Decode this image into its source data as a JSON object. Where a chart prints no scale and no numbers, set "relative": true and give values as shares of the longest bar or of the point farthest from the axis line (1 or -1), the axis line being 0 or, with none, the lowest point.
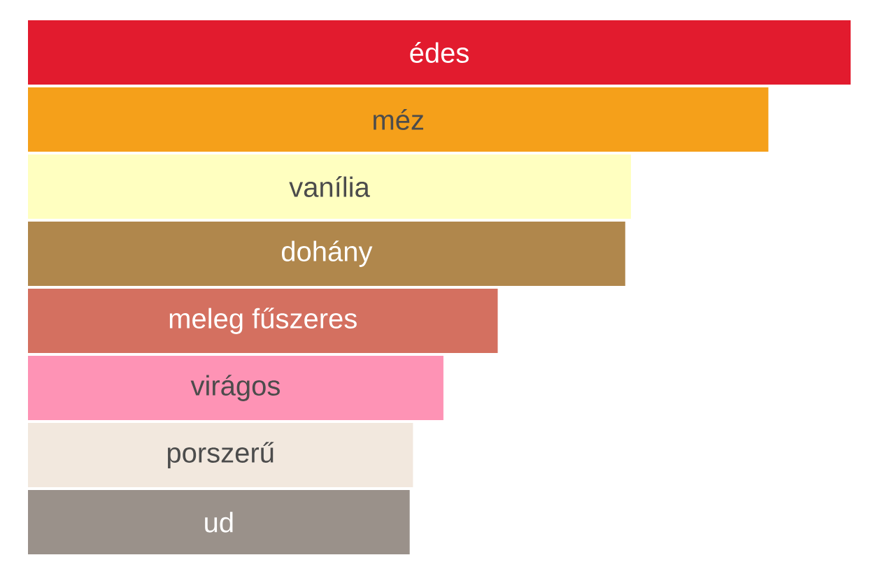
{
  "chart_data": {
    "type": "bar",
    "orientation": "horizontal",
    "relative": true,
    "categories": [
      "édes",
      "méz",
      "vanília",
      "dohány",
      "meleg fűszeres",
      "virágos",
      "porszerű",
      "ud"
    ],
    "values": [
      1,
      0.9,
      0.733,
      0.726,
      0.571,
      0.505,
      0.468,
      0.464
    ],
    "colors": [
      "#e21b2e",
      "#f5a01a",
      "#ffffc0",
      "#b0874c",
      "#d47060",
      "#fe93b5",
      "#f2e8de",
      "#9a918a"
    ]
  }
}
